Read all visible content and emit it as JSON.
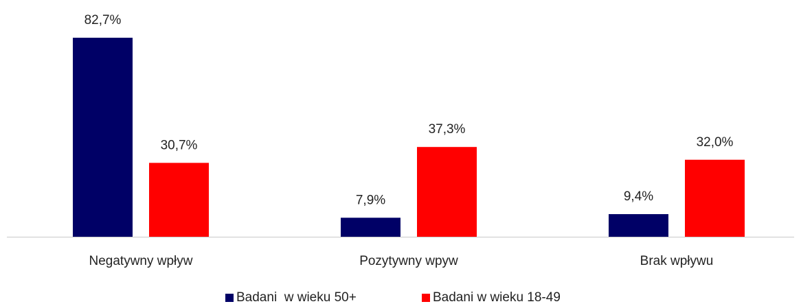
{
  "chart_data": {
    "type": "bar",
    "categories": [
      "Negatywny wpływ",
      "Pozytywny wpyw",
      "Brak wpływu"
    ],
    "series": [
      {
        "name": "Badani  w wieku 50+",
        "color": "#000066",
        "values": [
          82.7,
          7.9,
          9.4
        ],
        "value_labels": [
          "82,7%",
          "7,9%",
          "9,4%"
        ]
      },
      {
        "name": "Badani w wieku 18-49",
        "color": "#ff0000",
        "values": [
          30.7,
          37.3,
          32.0
        ],
        "value_labels": [
          "30,7%",
          "37,3%",
          "32,0%"
        ]
      }
    ]
  }
}
